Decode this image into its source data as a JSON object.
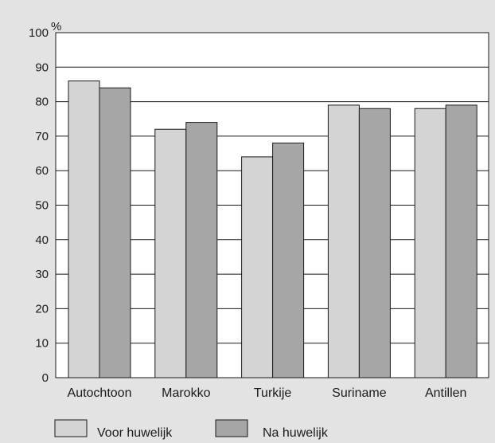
{
  "chart_data": {
    "type": "bar",
    "title": "",
    "xlabel": "",
    "ylabel": "%",
    "ylim": [
      0,
      100
    ],
    "yticks": [
      0,
      10,
      20,
      30,
      40,
      50,
      60,
      70,
      80,
      90,
      100
    ],
    "grid": true,
    "legend_position": "bottom",
    "categories": [
      "Autochtoon",
      "Marokko",
      "Turkije",
      "Suriname",
      "Antillen"
    ],
    "series": [
      {
        "name": "Voor huwelijk",
        "color": "#d4d4d4",
        "values": [
          86,
          72,
          64,
          79,
          78
        ]
      },
      {
        "name": "Na huwelijk",
        "color": "#a6a6a6",
        "values": [
          84,
          74,
          68,
          78,
          79
        ]
      }
    ]
  },
  "colors": {
    "background": "#e3e3e3",
    "plot_background": "#ffffff",
    "gridline": "#1a1a1a",
    "bar_stroke": "#1a1a1a"
  }
}
